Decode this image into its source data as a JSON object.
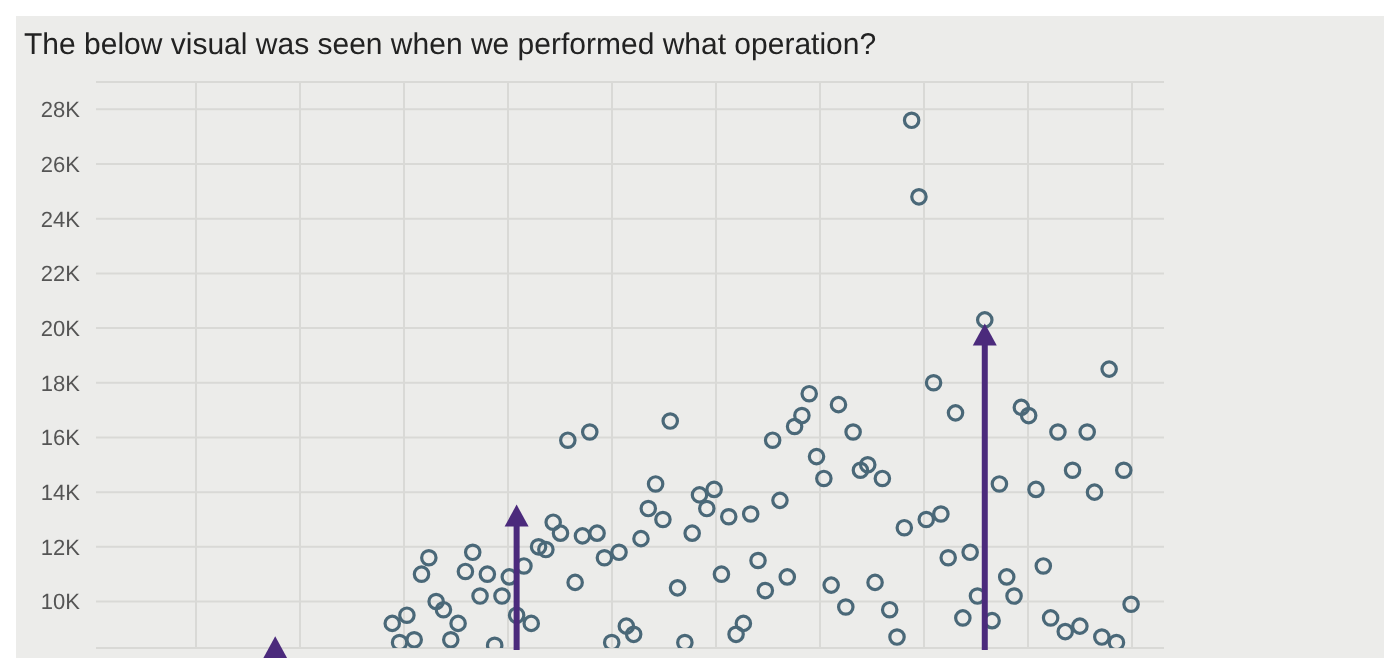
{
  "chart_data": {
    "type": "scatter",
    "title": "The below visual was seen when we performed what operation?",
    "categories": [
      null,
      null,
      null,
      null,
      null,
      null,
      null,
      null,
      null,
      null,
      null,
      null,
      null,
      null,
      null,
      null,
      null,
      null,
      null,
      null,
      null,
      null,
      null,
      null,
      null,
      null,
      null,
      null,
      null,
      null,
      null,
      null,
      null,
      null,
      null,
      null,
      null,
      null,
      null,
      null,
      null,
      null,
      null,
      null,
      null,
      null,
      null,
      null,
      null,
      null,
      null,
      null,
      null,
      null,
      null,
      null,
      null,
      null,
      null,
      null,
      null,
      null,
      null,
      null,
      null,
      null,
      null,
      null,
      null,
      null,
      null,
      null,
      null,
      null,
      null,
      null,
      null,
      null,
      null,
      null,
      null,
      null,
      null,
      null,
      null,
      null,
      null,
      null,
      null,
      null,
      null,
      null,
      null,
      null,
      null,
      null,
      null,
      null,
      null,
      null,
      null,
      null,
      null,
      null,
      null,
      null,
      null,
      null,
      null,
      null,
      null,
      null,
      null,
      null,
      null,
      null,
      null,
      null,
      null,
      null,
      null,
      null,
      null,
      null,
      null,
      null,
      null,
      null,
      null,
      null,
      null,
      null,
      null,
      null,
      null,
      null,
      null,
      null,
      null,
      null,
      null,
      null,
      null,
      null,
      null,
      null
    ],
    "values": [
      null,
      null,
      null,
      null,
      null,
      null,
      null,
      null,
      null,
      null,
      null,
      null,
      null,
      null,
      null,
      null,
      null,
      null,
      null,
      null,
      null,
      null,
      null,
      null,
      null,
      null,
      null,
      null,
      null,
      null,
      null,
      null,
      null,
      null,
      null,
      null,
      null,
      null,
      null,
      null,
      9200,
      8500,
      9500,
      8600,
      11000,
      11600,
      10000,
      9700,
      8600,
      9200,
      11100,
      11800,
      10200,
      11000,
      8400,
      10200,
      10900,
      9500,
      11300,
      9200,
      12000,
      11900,
      12900,
      12500,
      15900,
      10700,
      12400,
      16200,
      12500,
      11600,
      8500,
      11800,
      9100,
      8800,
      12300,
      13400,
      14300,
      13000,
      16600,
      10500,
      8500,
      12500,
      13900,
      13400,
      14100,
      11000,
      13100,
      8800,
      9200,
      13200,
      11500,
      10400,
      15900,
      13700,
      10900,
      16400,
      16800,
      17600,
      15300,
      14500,
      10600,
      17200,
      9800,
      16200,
      14800,
      15000,
      10700,
      14500,
      9700,
      8700,
      12700,
      27600,
      24800,
      13000,
      18000,
      13200,
      11600,
      16900,
      9400,
      11800,
      10200,
      20300,
      9300,
      14300,
      10900,
      10200,
      17100,
      16800,
      14100,
      11300,
      9400,
      16200,
      8900,
      14800,
      9100,
      16200,
      14000,
      8700,
      18500,
      8500,
      14800,
      9900,
      null,
      null,
      null,
      null
    ],
    "color": "#4a6878",
    "marker": "circle",
    "ylim": [
      8300,
      29000
    ],
    "yticks": [
      {
        "value": 10000,
        "label": "10K"
      },
      {
        "value": 12000,
        "label": "12K"
      },
      {
        "value": 14000,
        "label": "14K"
      },
      {
        "value": 16000,
        "label": "16K"
      },
      {
        "value": 18000,
        "label": "18K"
      },
      {
        "value": 20000,
        "label": "20K"
      },
      {
        "value": 22000,
        "label": "22K"
      },
      {
        "value": 24000,
        "label": "24K"
      },
      {
        "value": 26000,
        "label": "26K"
      },
      {
        "value": 28000,
        "label": "28K"
      }
    ],
    "grid": true,
    "tick_labels": "y"
  }
}
